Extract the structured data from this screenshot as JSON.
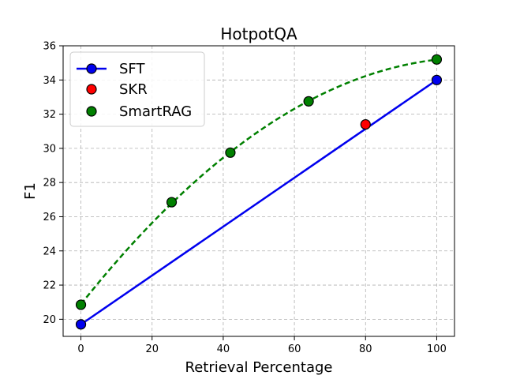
{
  "chart_data": {
    "type": "line",
    "title": "HotpotQA",
    "xlabel": "Retrieval Percentage",
    "ylabel": "F1",
    "xlim": [
      -5,
      105
    ],
    "ylim": [
      19,
      36
    ],
    "xticks": [
      0,
      20,
      40,
      60,
      80,
      100
    ],
    "yticks": [
      20,
      22,
      24,
      26,
      28,
      30,
      32,
      34,
      36
    ],
    "grid": true,
    "legend_position": "top-left",
    "series": [
      {
        "name": "SFT",
        "style": "solid line with markers",
        "color": "#0000ee",
        "marker_color": "#0000ee",
        "x": [
          0,
          100
        ],
        "y": [
          19.7,
          34.0
        ]
      },
      {
        "name": "SKR",
        "style": "markers only",
        "color": "#ff0000",
        "marker_color": "#ff0000",
        "x": [
          80
        ],
        "y": [
          31.4
        ]
      },
      {
        "name": "SmartRAG",
        "style": "markers with dashed fitted curve",
        "color": "#008000",
        "marker_color": "#008000",
        "x": [
          0,
          25.5,
          42,
          64,
          100
        ],
        "y": [
          20.85,
          26.85,
          29.75,
          32.75,
          35.2
        ]
      }
    ]
  }
}
